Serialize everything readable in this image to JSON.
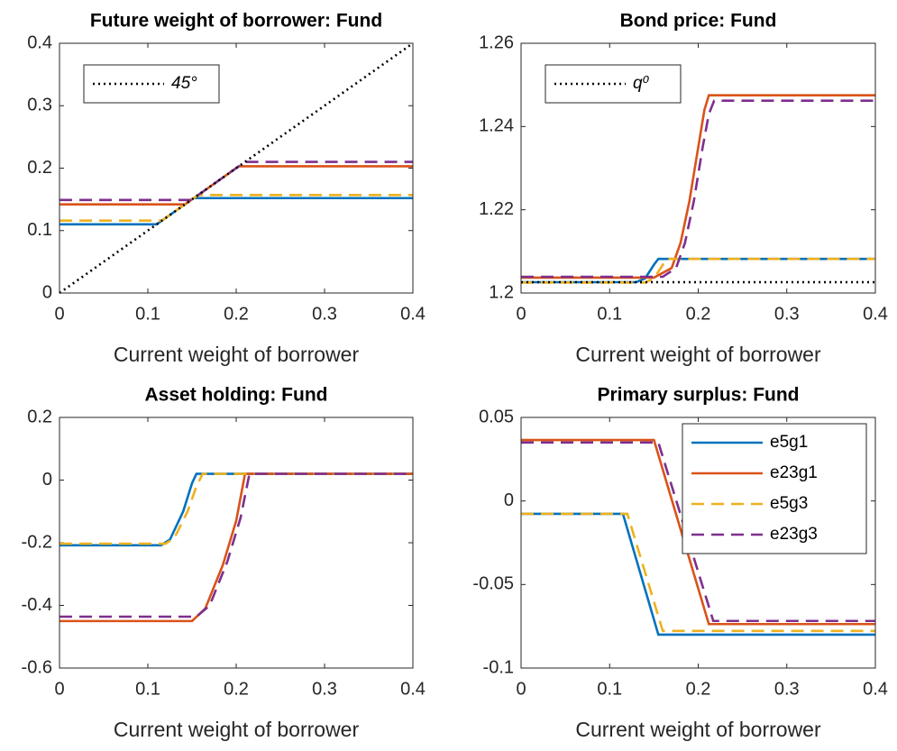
{
  "chart_data": [
    {
      "type": "line",
      "title": "Future weight of borrower: Fund",
      "xlabel": "Current weight of borrower",
      "xlim": [
        0,
        0.4
      ],
      "xticks": [
        0,
        0.1,
        0.2,
        0.3,
        0.4
      ],
      "ylim": [
        0,
        0.4
      ],
      "yticks": [
        0,
        0.1,
        0.2,
        0.3,
        0.4
      ],
      "legend": "upper left",
      "series": [
        {
          "color": "#0072bd",
          "style": "solid",
          "x": [
            0,
            0.11,
            0.152,
            0.4
          ],
          "values": [
            0.11,
            0.11,
            0.152,
            0.152
          ]
        },
        {
          "color": "#d95319",
          "style": "solid",
          "x": [
            0,
            0.142,
            0.203,
            0.4
          ],
          "values": [
            0.142,
            0.142,
            0.203,
            0.203
          ]
        },
        {
          "color": "#edb120",
          "style": "dashed",
          "x": [
            0,
            0.116,
            0.157,
            0.4
          ],
          "values": [
            0.116,
            0.116,
            0.157,
            0.157
          ]
        },
        {
          "color": "#7e2f8e",
          "style": "dashed",
          "x": [
            0,
            0.149,
            0.21,
            0.4
          ],
          "values": [
            0.149,
            0.149,
            0.21,
            0.21
          ]
        },
        {
          "name": "45°",
          "color": "#000000",
          "style": "dotted",
          "x": [
            0,
            0.4
          ],
          "values": [
            0,
            0.4
          ]
        }
      ]
    },
    {
      "type": "line",
      "title": "Bond price: Fund",
      "xlabel": "Current weight of borrower",
      "xlim": [
        0,
        0.4
      ],
      "xticks": [
        0,
        0.1,
        0.2,
        0.3,
        0.4
      ],
      "ylim": [
        1.2,
        1.26
      ],
      "yticks": [
        1.2,
        1.22,
        1.24,
        1.26
      ],
      "legend": "upper left",
      "series": [
        {
          "color": "#0072bd",
          "style": "solid",
          "x": [
            0,
            0.13,
            0.14,
            0.15,
            0.155,
            0.4
          ],
          "values": [
            1.2026,
            1.2026,
            1.2035,
            1.2068,
            1.2082,
            1.2082
          ]
        },
        {
          "color": "#d95319",
          "style": "solid",
          "x": [
            0,
            0.15,
            0.17,
            0.18,
            0.19,
            0.2,
            0.207,
            0.212,
            0.4
          ],
          "values": [
            1.2037,
            1.2037,
            1.206,
            1.212,
            1.222,
            1.235,
            1.244,
            1.2475,
            1.2475
          ]
        },
        {
          "color": "#edb120",
          "style": "dashed",
          "x": [
            0,
            0.14,
            0.15,
            0.16,
            0.165,
            0.4
          ],
          "values": [
            1.2025,
            1.2025,
            1.2035,
            1.2068,
            1.2082,
            1.2082
          ]
        },
        {
          "color": "#7e2f8e",
          "style": "dashed",
          "x": [
            0,
            0.16,
            0.175,
            0.185,
            0.195,
            0.205,
            0.212,
            0.218,
            0.4
          ],
          "values": [
            1.2039,
            1.2039,
            1.206,
            1.212,
            1.222,
            1.235,
            1.243,
            1.2462,
            1.2462
          ]
        },
        {
          "name": "q⁰",
          "color": "#000000",
          "style": "dotted",
          "x": [
            0,
            0.4
          ],
          "values": [
            1.2026,
            1.2026
          ]
        }
      ]
    },
    {
      "type": "line",
      "title": "Asset holding: Fund",
      "xlabel": "Current weight of borrower",
      "xlim": [
        0,
        0.4
      ],
      "xticks": [
        0,
        0.1,
        0.2,
        0.3,
        0.4
      ],
      "ylim": [
        -0.6,
        0.2
      ],
      "yticks": [
        -0.6,
        -0.4,
        -0.2,
        0,
        0.2
      ],
      "series": [
        {
          "color": "#0072bd",
          "style": "solid",
          "x": [
            0,
            0.115,
            0.125,
            0.14,
            0.15,
            0.155,
            0.4
          ],
          "values": [
            -0.208,
            -0.208,
            -0.19,
            -0.1,
            -0.01,
            0.02,
            0.02
          ]
        },
        {
          "color": "#d95319",
          "style": "solid",
          "x": [
            0,
            0.15,
            0.165,
            0.185,
            0.2,
            0.21,
            0.4
          ],
          "values": [
            -0.45,
            -0.45,
            -0.41,
            -0.27,
            -0.13,
            0.02,
            0.02
          ]
        },
        {
          "color": "#edb120",
          "style": "dashed",
          "x": [
            0,
            0.12,
            0.13,
            0.145,
            0.155,
            0.162,
            0.4
          ],
          "values": [
            -0.203,
            -0.203,
            -0.185,
            -0.1,
            -0.02,
            0.02,
            0.02
          ]
        },
        {
          "color": "#7e2f8e",
          "style": "dashed",
          "x": [
            0,
            0.155,
            0.17,
            0.19,
            0.205,
            0.215,
            0.4
          ],
          "values": [
            -0.436,
            -0.436,
            -0.4,
            -0.26,
            -0.12,
            0.02,
            0.02
          ]
        }
      ]
    },
    {
      "type": "line",
      "title": "Primary surplus: Fund",
      "xlabel": "Current weight of borrower",
      "xlim": [
        0,
        0.4
      ],
      "xticks": [
        0,
        0.1,
        0.2,
        0.3,
        0.4
      ],
      "ylim": [
        -0.1,
        0.05
      ],
      "yticks": [
        -0.1,
        -0.05,
        0,
        0.05
      ],
      "legend": "upper right",
      "series": [
        {
          "name": "e5g1",
          "color": "#0072bd",
          "style": "solid",
          "x": [
            0,
            0.115,
            0.155,
            0.4
          ],
          "values": [
            -0.0077,
            -0.0077,
            -0.08,
            -0.08
          ]
        },
        {
          "name": "e23g1",
          "color": "#d95319",
          "style": "solid",
          "x": [
            0,
            0.15,
            0.212,
            0.4
          ],
          "values": [
            0.0365,
            0.0365,
            -0.0737,
            -0.0737
          ]
        },
        {
          "name": "e5g3",
          "color": "#edb120",
          "style": "dashed",
          "x": [
            0,
            0.12,
            0.16,
            0.4
          ],
          "values": [
            -0.0077,
            -0.0077,
            -0.0778,
            -0.0778
          ]
        },
        {
          "name": "e23g3",
          "color": "#7e2f8e",
          "style": "dashed",
          "x": [
            0,
            0.155,
            0.217,
            0.4
          ],
          "values": [
            0.035,
            0.035,
            -0.0718,
            -0.0718
          ]
        }
      ]
    }
  ]
}
